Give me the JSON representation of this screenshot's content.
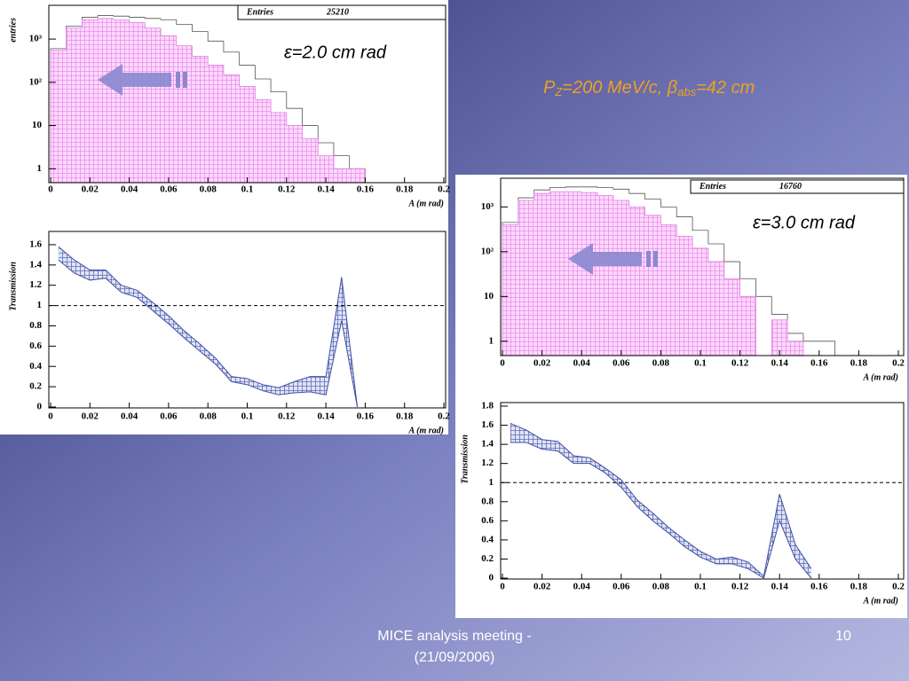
{
  "chart_data": [
    {
      "type": "histogram",
      "log_y": true,
      "bins": [
        0,
        0.008,
        0.016,
        0.024,
        0.032,
        0.04,
        0.048,
        0.056,
        0.064,
        0.072,
        0.08,
        0.088,
        0.096,
        0.104,
        0.112,
        0.12,
        0.128,
        0.136,
        0.144,
        0.152,
        0.16,
        0.168
      ],
      "series": [
        {
          "color": "#ffffff",
          "values": [
            600,
            2000,
            3200,
            3500,
            3400,
            3200,
            3000,
            2800,
            2200,
            1500,
            900,
            500,
            250,
            120,
            60,
            25,
            10,
            4,
            2,
            1,
            null
          ]
        },
        {
          "color": "#e080e0",
          "hatch": true,
          "values": [
            550,
            1800,
            2800,
            3000,
            2800,
            2400,
            1800,
            1200,
            700,
            400,
            250,
            150,
            80,
            40,
            20,
            10,
            5,
            2,
            1,
            1,
            null
          ]
        }
      ],
      "xlim": [
        0,
        0.2
      ],
      "xticks": [
        0,
        0.02,
        0.04,
        0.06,
        0.08,
        0.1,
        0.12,
        0.14,
        0.16,
        0.18,
        0.2
      ],
      "ylim": [
        0.5,
        5000
      ],
      "yticks": [
        1,
        10,
        {
          "value": 100,
          "label": "10²"
        },
        {
          "value": 1000,
          "label": "10³"
        }
      ],
      "xlabel": "A (m rad)",
      "ylabel": "entries",
      "stats_label": "Entries",
      "stats_value": 25210,
      "annotation": "ε=2.0 cm rad"
    },
    {
      "type": "band",
      "x": [
        0.004,
        0.012,
        0.02,
        0.028,
        0.036,
        0.044,
        0.052,
        0.06,
        0.068,
        0.076,
        0.084,
        0.092,
        0.1,
        0.108,
        0.116,
        0.124,
        0.132,
        0.14,
        0.148,
        0.156
      ],
      "series": [
        {
          "color": "#4050a0",
          "values": [
            1.45,
            1.32,
            1.25,
            1.27,
            1.13,
            1.08,
            0.95,
            0.82,
            0.68,
            0.55,
            0.42,
            0.25,
            0.22,
            0.16,
            0.12,
            0.14,
            0.15,
            0.12,
            0.85,
            0
          ]
        },
        {
          "color": "#4050a0",
          "hatch": true,
          "values": [
            1.58,
            1.45,
            1.35,
            1.35,
            1.2,
            1.15,
            1.03,
            0.9,
            0.75,
            0.62,
            0.48,
            0.3,
            0.28,
            0.22,
            0.19,
            0.25,
            0.3,
            0.3,
            1.28,
            0
          ]
        }
      ],
      "hline": 1,
      "xlim": [
        0,
        0.2
      ],
      "xticks": [
        0,
        0.02,
        0.04,
        0.06,
        0.08,
        0.1,
        0.12,
        0.14,
        0.16,
        0.18,
        0.2
      ],
      "ylim": [
        0,
        1.7
      ],
      "yticks": [
        0,
        0.2,
        0.4,
        0.6,
        0.8,
        1,
        1.2,
        1.4,
        1.6
      ],
      "xlabel": "A (m rad)",
      "ylabel": "Transmission"
    },
    {
      "type": "histogram",
      "log_y": true,
      "bins": [
        0,
        0.008,
        0.016,
        0.024,
        0.032,
        0.04,
        0.048,
        0.056,
        0.064,
        0.072,
        0.08,
        0.088,
        0.096,
        0.104,
        0.112,
        0.12,
        0.128,
        0.136,
        0.144,
        0.152,
        0.16,
        0.168
      ],
      "series": [
        {
          "color": "#ffffff",
          "values": [
            450,
            1600,
            2400,
            2700,
            2800,
            2800,
            2700,
            2500,
            2000,
            1500,
            1000,
            600,
            300,
            150,
            60,
            25,
            10,
            4,
            1.5,
            1,
            1
          ]
        },
        {
          "color": "#e080e0",
          "hatch": true,
          "values": [
            400,
            1400,
            2000,
            2200,
            2200,
            2100,
            1800,
            1400,
            1000,
            650,
            400,
            220,
            120,
            60,
            25,
            10,
            null,
            3,
            1,
            null,
            null
          ]
        }
      ],
      "xlim": [
        0,
        0.2
      ],
      "xticks": [
        0,
        0.02,
        0.04,
        0.06,
        0.08,
        0.1,
        0.12,
        0.14,
        0.16,
        0.18,
        0.2
      ],
      "ylim": [
        0.5,
        4000
      ],
      "yticks": [
        1,
        10,
        {
          "value": 100,
          "label": "10²"
        },
        {
          "value": 1000,
          "label": "10³"
        }
      ],
      "xlabel": "A (m rad)",
      "stats_label": "Entries",
      "stats_value": 16760,
      "annotation": "ε=3.0 cm rad"
    },
    {
      "type": "band",
      "x": [
        0.004,
        0.012,
        0.02,
        0.028,
        0.036,
        0.044,
        0.052,
        0.06,
        0.068,
        0.076,
        0.084,
        0.092,
        0.1,
        0.108,
        0.116,
        0.124,
        0.132,
        0.14,
        0.148,
        0.156
      ],
      "series": [
        {
          "color": "#4050a0",
          "values": [
            1.42,
            1.42,
            1.35,
            1.33,
            1.2,
            1.2,
            1.1,
            0.95,
            0.75,
            0.6,
            0.47,
            0.33,
            0.22,
            0.15,
            0.15,
            0.1,
            0,
            0.6,
            0.2,
            0
          ]
        },
        {
          "color": "#4050a0",
          "hatch": true,
          "values": [
            1.62,
            1.55,
            1.45,
            1.43,
            1.28,
            1.26,
            1.15,
            1.03,
            0.82,
            0.68,
            0.53,
            0.4,
            0.28,
            0.2,
            0.22,
            0.17,
            0.02,
            0.88,
            0.35,
            0.1
          ]
        }
      ],
      "hline": 1,
      "xlim": [
        0,
        0.2
      ],
      "xticks": [
        0,
        0.02,
        0.04,
        0.06,
        0.08,
        0.1,
        0.12,
        0.14,
        0.16,
        0.18,
        0.2
      ],
      "ylim": [
        0,
        1.8
      ],
      "yticks": [
        0,
        0.2,
        0.4,
        0.6,
        0.8,
        1,
        1.2,
        1.4,
        1.6,
        1.8
      ],
      "xlabel": "A (m rad)",
      "ylabel": "Transmission"
    }
  ],
  "slide": {
    "beam_parts": [
      "P",
      "Z",
      "=200 MeV/c, ",
      "β",
      "abs",
      "=42 cm"
    ],
    "footer": [
      "MICE analysis meeting -",
      "(21/09/2006)"
    ],
    "page_number": "10"
  }
}
